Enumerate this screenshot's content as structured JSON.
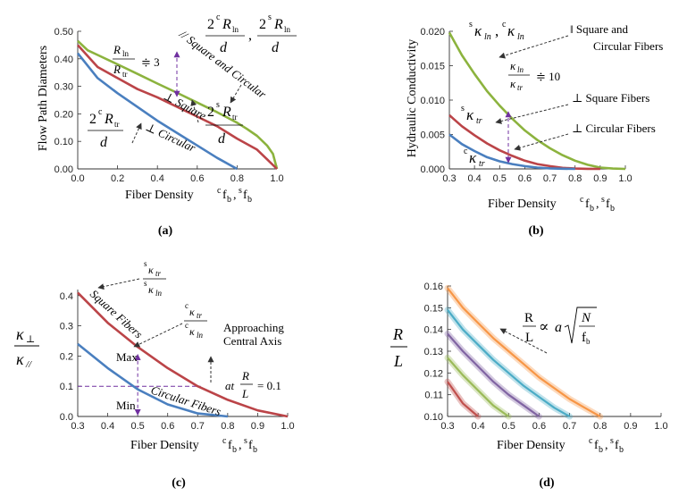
{
  "chart_data": [
    {
      "panel": "(a)",
      "type": "line",
      "xlabel_text": "Fiber Density",
      "xlabel_vars": [
        "c",
        "f",
        "b",
        "s",
        "f",
        "b"
      ],
      "ylabel": "Flow Path Diameters",
      "xlim": [
        0,
        1.0
      ],
      "ylim": [
        0,
        0.5
      ],
      "xticks": [
        "0.0",
        "0.2",
        "0.4",
        "0.6",
        "0.8",
        "1.0"
      ],
      "yticks": [
        "0.00",
        "0.10",
        "0.20",
        "0.30",
        "0.40",
        "0.50"
      ],
      "series": [
        {
          "color": "#8cb33e",
          "x": [
            0,
            0.05,
            0.1,
            0.2,
            0.3,
            0.4,
            0.5,
            0.6,
            0.7,
            0.8,
            0.85,
            0.9,
            0.95,
            0.98,
            1.0
          ],
          "y": [
            0.465,
            0.431,
            0.414,
            0.38,
            0.345,
            0.31,
            0.276,
            0.241,
            0.206,
            0.168,
            0.145,
            0.12,
            0.085,
            0.055,
            0.0
          ]
        },
        {
          "color": "#bb4448",
          "x": [
            0,
            0.1,
            0.2,
            0.3,
            0.4,
            0.5,
            0.6,
            0.7,
            0.8,
            0.9,
            0.95,
            1.0
          ],
          "y": [
            0.45,
            0.37,
            0.33,
            0.29,
            0.26,
            0.225,
            0.19,
            0.155,
            0.11,
            0.07,
            0.035,
            0.0
          ]
        },
        {
          "color": "#4a7fbf",
          "x": [
            0,
            0.1,
            0.2,
            0.3,
            0.4,
            0.5,
            0.6,
            0.7,
            0.8
          ],
          "y": [
            0.42,
            0.33,
            0.275,
            0.225,
            0.175,
            0.13,
            0.085,
            0.04,
            0.0
          ]
        }
      ],
      "series_labels": [
        "// Square and Circular",
        "⊥ Square",
        "⊥ Circular"
      ],
      "ratio": {
        "num": "R",
        "num_sub": "ln",
        "den": "R",
        "den_sub": "tr",
        "value": "≑ 3"
      },
      "formulas": {
        "a": {
          "sup": "c",
          "base": "R",
          "sub": "ln",
          "den": "d"
        },
        "b": {
          "sup": "s",
          "base": "R",
          "sub": "ln",
          "den": "d"
        },
        "c": {
          "sup": "c",
          "base": "R",
          "sub": "tr",
          "den": "d"
        },
        "d": {
          "sup": "s",
          "base": "R",
          "sub": "tr",
          "den": "d"
        },
        "leading": "2",
        "separator": ","
      }
    },
    {
      "panel": "(b)",
      "type": "line",
      "xlabel_text": "Fiber Density",
      "xlabel_vars": [
        "c",
        "f",
        "b",
        "s",
        "f",
        "b"
      ],
      "ylabel": "Hydraulic Conductivity",
      "xlim": [
        0.3,
        1.0
      ],
      "ylim": [
        0,
        0.02
      ],
      "xticks": [
        "0.3",
        "0.4",
        "0.5",
        "0.6",
        "0.7",
        "0.8",
        "0.9",
        "1.0"
      ],
      "yticks": [
        "0.000",
        "0.005",
        "0.010",
        "0.015",
        "0.020"
      ],
      "series": [
        {
          "color": "#8cb33e",
          "x": [
            0.3,
            0.35,
            0.4,
            0.45,
            0.5,
            0.55,
            0.6,
            0.65,
            0.7,
            0.75,
            0.8,
            0.85,
            0.9,
            0.95,
            1.0
          ],
          "y": [
            0.0198,
            0.0165,
            0.0138,
            0.0113,
            0.0092,
            0.0073,
            0.0056,
            0.0042,
            0.003,
            0.002,
            0.0012,
            0.0006,
            0.0002,
            5e-05,
            0.0
          ]
        },
        {
          "color": "#bb4448",
          "x": [
            0.3,
            0.35,
            0.4,
            0.45,
            0.5,
            0.55,
            0.6,
            0.65,
            0.7,
            0.75,
            0.8,
            0.85,
            0.9
          ],
          "y": [
            0.0078,
            0.0062,
            0.0049,
            0.0037,
            0.0027,
            0.0019,
            0.0012,
            0.0007,
            0.0004,
            0.00015,
            5e-05,
            1e-05,
            0.0
          ]
        },
        {
          "color": "#4a7fbf",
          "x": [
            0.3,
            0.35,
            0.4,
            0.45,
            0.5,
            0.55,
            0.6,
            0.65,
            0.7,
            0.75,
            0.8
          ],
          "y": [
            0.005,
            0.0036,
            0.0026,
            0.0017,
            0.0011,
            0.0007,
            0.0004,
            0.0002,
            8e-05,
            2e-05,
            0.0
          ]
        }
      ],
      "annotations": [
        "‖ Square and",
        "Circular Fibers",
        "⊥  Square Fibers",
        "⊥  Circular Fibers",
        "≑ 10"
      ],
      "kappa": {
        "glyph": "κ",
        "ln": "ln",
        "tr": "tr",
        "s": "s",
        "c": "c",
        "comma": ","
      }
    },
    {
      "panel": "(c)",
      "type": "line",
      "xlabel_text": "Fiber Density",
      "xlabel_vars": [
        "c",
        "f",
        "b",
        "s",
        "f",
        "b"
      ],
      "ylabel": {
        "num": "κ",
        "num_sub": "⊥",
        "den": "κ",
        "den_sub": "//"
      },
      "xlim": [
        0.3,
        1.0
      ],
      "ylim": [
        0,
        0.42
      ],
      "xticks": [
        "0.3",
        "0.4",
        "0.5",
        "0.6",
        "0.7",
        "0.8",
        "0.9",
        "1.0"
      ],
      "yticks": [
        "0.0",
        "0.1",
        "0.2",
        "0.3",
        "0.4"
      ],
      "series": [
        {
          "color": "#bb4448",
          "x": [
            0.3,
            0.4,
            0.5,
            0.6,
            0.7,
            0.8,
            0.9,
            1.0
          ],
          "y": [
            0.41,
            0.31,
            0.23,
            0.16,
            0.1,
            0.055,
            0.02,
            0.0
          ]
        },
        {
          "color": "#4a7fbf",
          "x": [
            0.3,
            0.4,
            0.5,
            0.6,
            0.7,
            0.8
          ],
          "y": [
            0.24,
            0.16,
            0.09,
            0.04,
            0.01,
            0.0
          ]
        }
      ],
      "series_labels": [
        "Square Fibers",
        "Circular Fibers"
      ],
      "annotations": [
        "Max",
        "Min",
        "Approaching",
        "Central Axis",
        "at",
        "= 0.1"
      ],
      "ratio_var": {
        "num": "R",
        "den": "L"
      },
      "reference_line_y": 0.1,
      "ratios": {
        "sq": {
          "sup": "s"
        },
        "ci": {
          "sup": "c"
        }
      }
    },
    {
      "panel": "(d)",
      "type": "line",
      "xlabel_text": "Fiber Density",
      "xlabel_vars": [
        "c",
        "f",
        "b",
        "s",
        "f",
        "b"
      ],
      "ylabel": {
        "num": "R",
        "den": "L"
      },
      "xlim": [
        0.3,
        1.0
      ],
      "ylim": [
        0.1,
        0.16
      ],
      "xticks": [
        "0.3",
        "0.4",
        "0.5",
        "0.6",
        "0.7",
        "0.8",
        "0.9",
        "1.0"
      ],
      "yticks": [
        "0.10",
        "0.11",
        "0.12",
        "0.13",
        "0.14",
        "0.15",
        "0.16"
      ],
      "series": [
        {
          "color": "#c0504d",
          "x": [
            0.3,
            0.35,
            0.4
          ],
          "y": [
            0.116,
            0.106,
            0.1
          ]
        },
        {
          "color": "#9bbb59",
          "x": [
            0.3,
            0.35,
            0.4,
            0.45,
            0.5
          ],
          "y": [
            0.127,
            0.119,
            0.112,
            0.105,
            0.1
          ]
        },
        {
          "color": "#8064a2",
          "x": [
            0.3,
            0.35,
            0.4,
            0.45,
            0.5,
            0.55,
            0.6
          ],
          "y": [
            0.138,
            0.13,
            0.123,
            0.116,
            0.11,
            0.105,
            0.1
          ]
        },
        {
          "color": "#4bacc6",
          "x": [
            0.3,
            0.35,
            0.4,
            0.45,
            0.5,
            0.55,
            0.6,
            0.65,
            0.7
          ],
          "y": [
            0.149,
            0.14,
            0.133,
            0.126,
            0.12,
            0.114,
            0.109,
            0.104,
            0.1
          ]
        },
        {
          "color": "#f79646",
          "x": [
            0.3,
            0.35,
            0.4,
            0.45,
            0.5,
            0.55,
            0.6,
            0.65,
            0.7,
            0.75,
            0.8
          ],
          "y": [
            0.159,
            0.15,
            0.143,
            0.136,
            0.13,
            0.124,
            0.118,
            0.113,
            0.108,
            0.104,
            0.1
          ]
        }
      ],
      "formula": {
        "lhs_num": "R",
        "lhs_den": "L",
        "op": "∝",
        "coef": "a",
        "rad_num": "N",
        "rad_den": "f",
        "rad_den_sub": "b"
      }
    }
  ]
}
